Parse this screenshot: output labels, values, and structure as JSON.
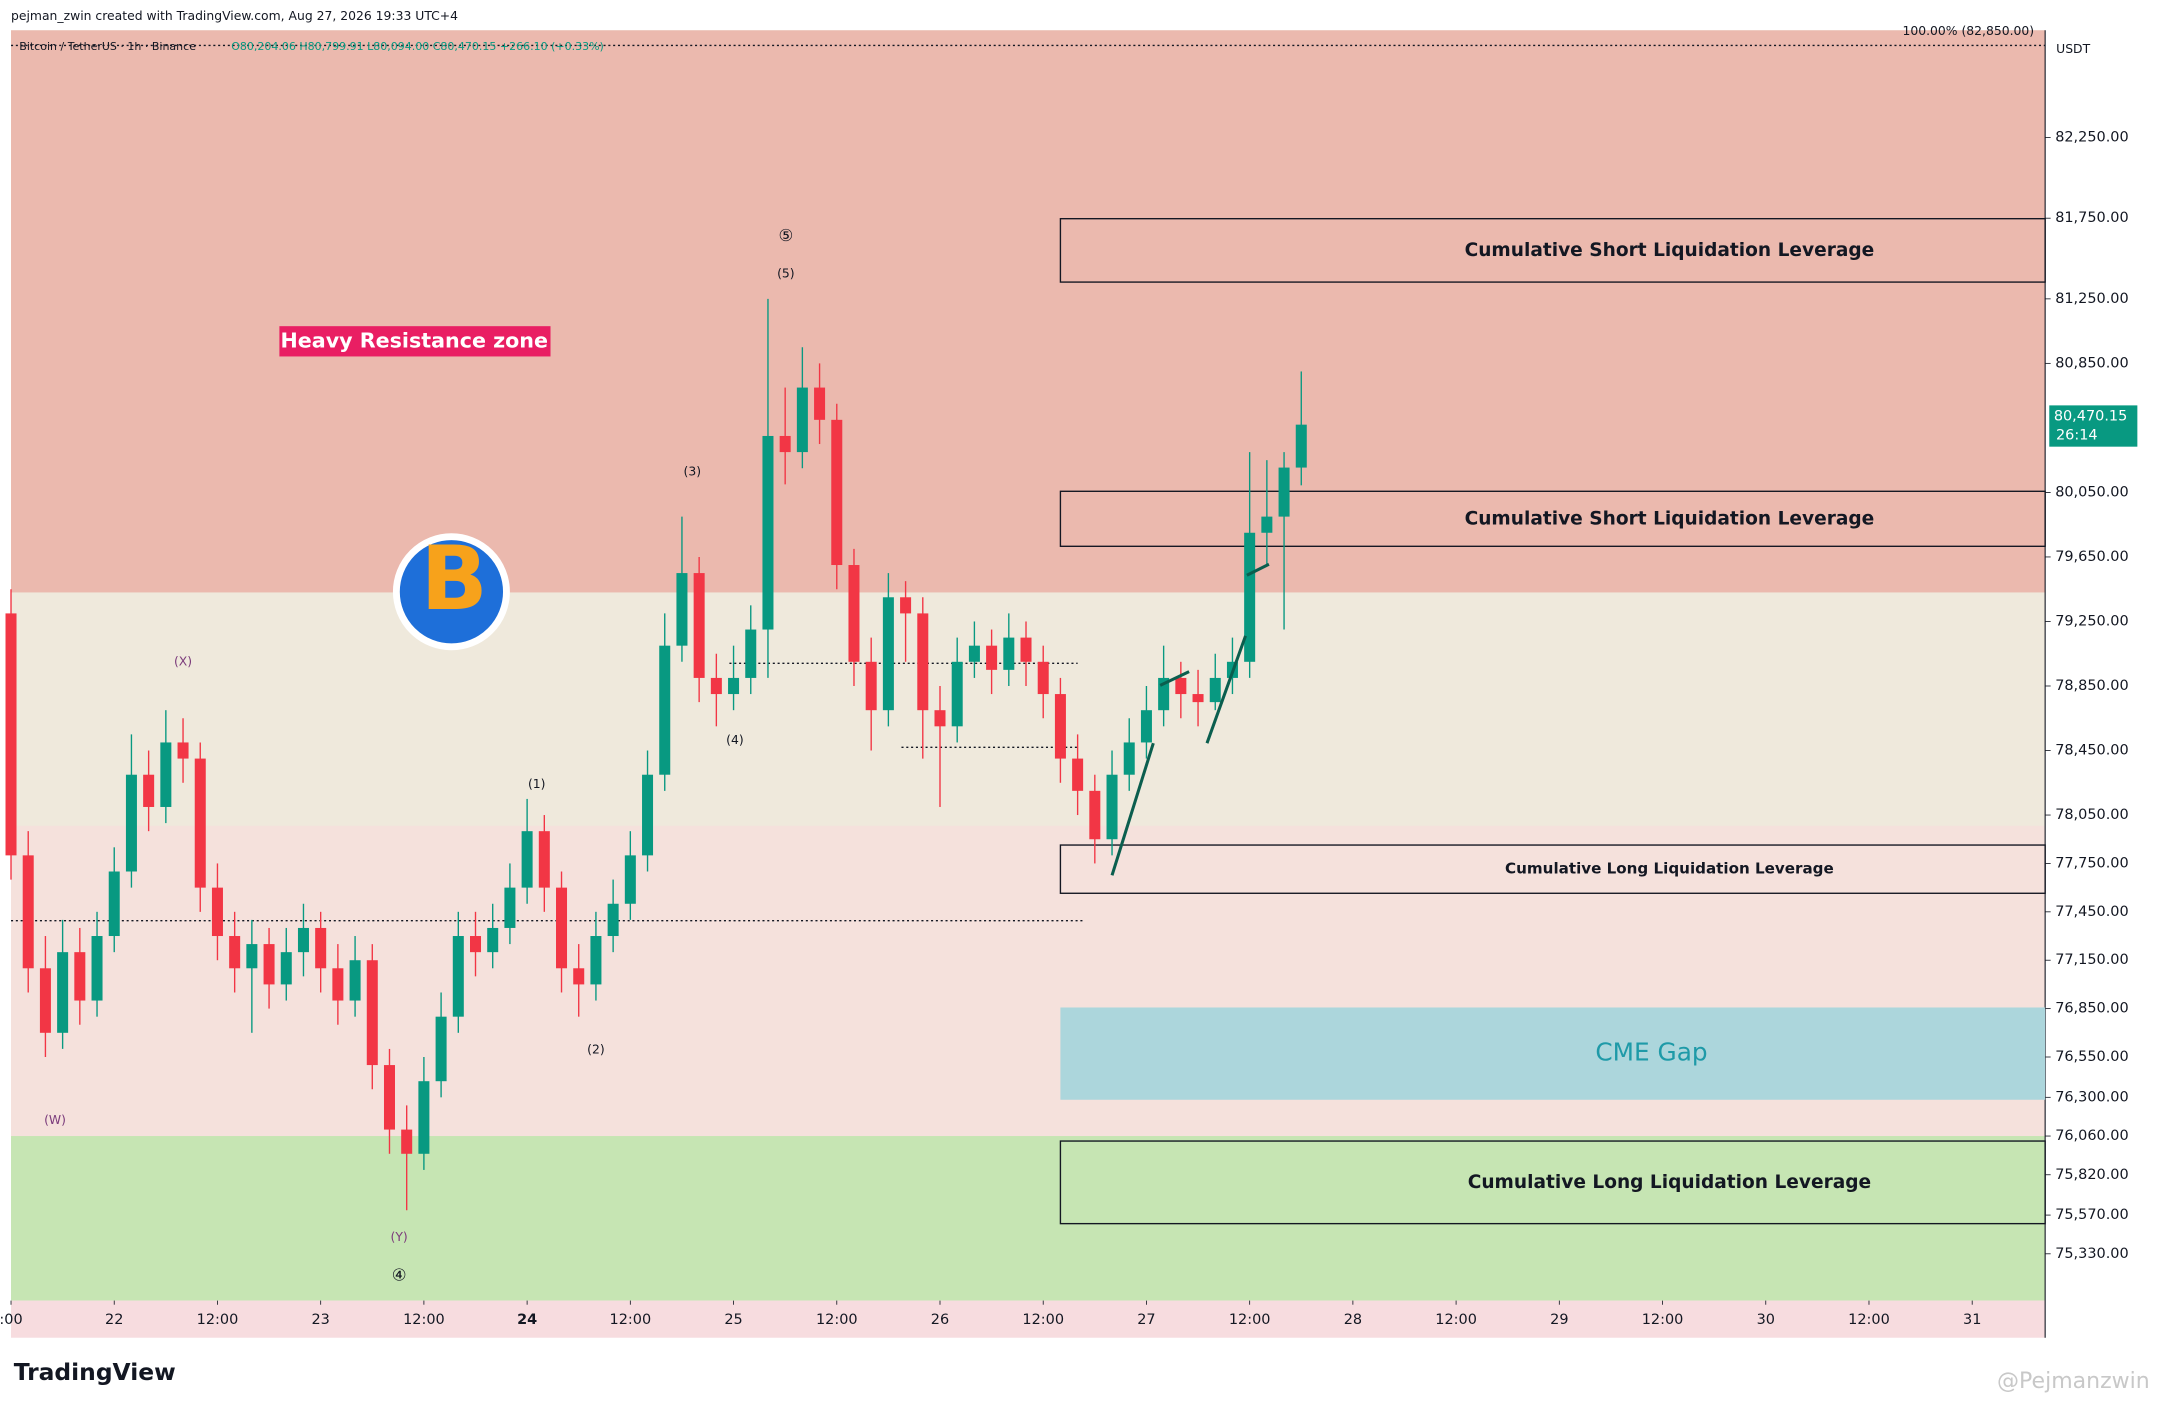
{
  "header": {
    "author_line": "pejman_zwin created with TradingView.com, Aug 27, 2026 19:33 UTC+4",
    "symbol_line": "Bitcoin / TetherUS · 1h · Binance",
    "ohlc_line": "O80,204.06 H80,799.91 L80,094.00 C80,470.15 +266.10 (+0.33%)"
  },
  "chart_data": {
    "type": "candlestick",
    "currency": "USDT",
    "top_label": "100.00% (82,850.00)",
    "last_price_label": "80,470.15",
    "countdown": "26:14",
    "up_color": "#089981",
    "down_color": "#f23645",
    "xlim": [
      -12,
      224.48
    ],
    "ylim": [
      75040,
      82915
    ],
    "xticks": [
      {
        "value": -12,
        "label": ":00"
      },
      {
        "value": 0,
        "label": "22"
      },
      {
        "value": 12,
        "label": "12:00"
      },
      {
        "value": 24,
        "label": "23"
      },
      {
        "value": 36,
        "label": "12:00"
      },
      {
        "value": 48,
        "label": "24"
      },
      {
        "value": 60,
        "label": "12:00"
      },
      {
        "value": 72,
        "label": "25"
      },
      {
        "value": 84,
        "label": "12:00"
      },
      {
        "value": 96,
        "label": "26"
      },
      {
        "value": 108,
        "label": "12:00"
      },
      {
        "value": 120,
        "label": "27"
      },
      {
        "value": 132,
        "label": "12:00"
      },
      {
        "value": 144,
        "label": "28"
      },
      {
        "value": 156,
        "label": "12:00"
      },
      {
        "value": 168,
        "label": "29"
      },
      {
        "value": 180,
        "label": "12:00"
      },
      {
        "value": 192,
        "label": "30"
      },
      {
        "value": 204,
        "label": "12:00"
      },
      {
        "value": 216,
        "label": "31"
      }
    ],
    "yticks": [
      {
        "value": 82250,
        "label": "82,250.00"
      },
      {
        "value": 81750,
        "label": "81,750.00"
      },
      {
        "value": 81250,
        "label": "81,250.00"
      },
      {
        "value": 80850,
        "label": "80,850.00"
      },
      {
        "value": 80050,
        "label": "80,050.00"
      },
      {
        "value": 79650,
        "label": "79,650.00"
      },
      {
        "value": 79250,
        "label": "79,250.00"
      },
      {
        "value": 78850,
        "label": "78,850.00"
      },
      {
        "value": 78450,
        "label": "78,450.00"
      },
      {
        "value": 78050,
        "label": "78,050.00"
      },
      {
        "value": 77750,
        "label": "77,750.00"
      },
      {
        "value": 77450,
        "label": "77,450.00"
      },
      {
        "value": 77150,
        "label": "77,150.00"
      },
      {
        "value": 76850,
        "label": "76,850.00"
      },
      {
        "value": 76550,
        "label": "76,550.00"
      },
      {
        "value": 76300,
        "label": "76,300.00"
      },
      {
        "value": 76060,
        "label": "76,060.00"
      },
      {
        "value": 75820,
        "label": "75,820.00"
      },
      {
        "value": 75570,
        "label": "75,570.00"
      },
      {
        "value": 75330,
        "label": "75,330.00"
      }
    ],
    "x": [
      -12,
      -10,
      -8,
      -6,
      -4,
      -2,
      0,
      2,
      4,
      6,
      8,
      10,
      12,
      14,
      16,
      18,
      20,
      22,
      24,
      26,
      28,
      30,
      32,
      34,
      36,
      38,
      40,
      42,
      44,
      46,
      48,
      50,
      52,
      54,
      56,
      58,
      60,
      62,
      64,
      66,
      68,
      70,
      72,
      74,
      76,
      78,
      80,
      82,
      84,
      86,
      88,
      90,
      92,
      94,
      96,
      98,
      100,
      102,
      104,
      106,
      108,
      110,
      112,
      114,
      116,
      118,
      120,
      122,
      124,
      126,
      128,
      130,
      132,
      134,
      136,
      138
    ],
    "open": [
      79300,
      77800,
      77100,
      76700,
      77200,
      76900,
      77300,
      77700,
      78300,
      78100,
      78500,
      78400,
      77600,
      77300,
      77100,
      77250,
      77000,
      77200,
      77350,
      77100,
      76900,
      77150,
      76500,
      76100,
      75950,
      76400,
      76800,
      77300,
      77200,
      77350,
      77600,
      77950,
      77600,
      77100,
      77000,
      77300,
      77500,
      77800,
      78300,
      79100,
      79550,
      78900,
      78800,
      78900,
      79200,
      80400,
      80300,
      80700,
      80500,
      79600,
      79000,
      78700,
      79400,
      79300,
      78700,
      78600,
      79000,
      79100,
      78950,
      79150,
      79000,
      78800,
      78400,
      78200,
      77900,
      78300,
      78500,
      78700,
      78900,
      78800,
      78750,
      78900,
      79000,
      79800,
      79900,
      80204.06
    ],
    "high": [
      79450,
      77950,
      77300,
      77400,
      77350,
      77450,
      77850,
      78550,
      78450,
      78700,
      78650,
      78500,
      77750,
      77450,
      77400,
      77350,
      77350,
      77500,
      77450,
      77250,
      77300,
      77250,
      76600,
      76250,
      76550,
      76950,
      77450,
      77450,
      77500,
      77750,
      78150,
      78050,
      77700,
      77250,
      77450,
      77650,
      77950,
      78450,
      79300,
      79900,
      79650,
      79050,
      79100,
      79350,
      81250,
      80700,
      80950,
      80850,
      80600,
      79700,
      79150,
      79550,
      79500,
      79400,
      78850,
      79150,
      79250,
      79200,
      79300,
      79250,
      79100,
      78900,
      78550,
      78300,
      78450,
      78650,
      78850,
      79100,
      79000,
      78950,
      79050,
      79150,
      80300,
      80250,
      80300,
      80799.91
    ],
    "low": [
      77650,
      76950,
      76550,
      76600,
      76750,
      76800,
      77200,
      77600,
      77950,
      78000,
      78250,
      77450,
      77150,
      76950,
      76700,
      76850,
      76900,
      77050,
      76950,
      76750,
      76800,
      76350,
      75950,
      75600,
      75850,
      76300,
      76700,
      77050,
      77100,
      77250,
      77500,
      77450,
      76950,
      76800,
      76900,
      77200,
      77400,
      77700,
      78200,
      79000,
      78750,
      78600,
      78700,
      78800,
      78900,
      80100,
      80200,
      80350,
      79450,
      78850,
      78450,
      78600,
      79000,
      78400,
      78100,
      78500,
      78900,
      78800,
      78850,
      78850,
      78650,
      78250,
      78050,
      77750,
      77800,
      78200,
      78400,
      78600,
      78650,
      78600,
      78700,
      78800,
      78900,
      79600,
      79200,
      80094
    ],
    "close": [
      77800,
      77100,
      76700,
      77200,
      76900,
      77300,
      77700,
      78300,
      78100,
      78500,
      78400,
      77600,
      77300,
      77100,
      77250,
      77000,
      77200,
      77350,
      77100,
      76900,
      77150,
      76500,
      76100,
      75950,
      76400,
      76800,
      77300,
      77200,
      77350,
      77600,
      77950,
      77600,
      77100,
      77000,
      77300,
      77500,
      77800,
      78300,
      79100,
      79550,
      78900,
      78800,
      78900,
      79200,
      80400,
      80300,
      80700,
      80500,
      79600,
      79000,
      78700,
      79400,
      79300,
      78700,
      78600,
      79000,
      79100,
      78950,
      79150,
      79000,
      78800,
      78400,
      78200,
      77900,
      78300,
      78500,
      78700,
      78900,
      78800,
      78750,
      78900,
      79000,
      79800,
      79900,
      80204.06,
      80470.15
    ],
    "resistance_zone": {
      "label": "Heavy Resistance zone",
      "low": 79430,
      "color": "#ebb9ae"
    },
    "support_zone": {
      "high": 76060,
      "color": "#c6e5b3"
    },
    "zones": [
      {
        "label": "Cumulative Short Liquidation Leverage",
        "low": 81354,
        "high": 81747,
        "x_start": 110
      },
      {
        "label": "Cumulative Short Liquidation Leverage",
        "low": 79716,
        "high": 80057,
        "x_start": 110
      },
      {
        "label": "Cumulative Long Liquidation Leverage",
        "low": 77565,
        "high": 77864,
        "x_start": 110
      },
      {
        "label": "CME Gap",
        "low": 76285,
        "high": 76857,
        "x_start": 110,
        "color": "#acd6dc"
      },
      {
        "label": "Cumulative Long Liquidation Leverage",
        "low": 75517,
        "high": 76029,
        "x_start": 110
      }
    ],
    "annotations": [
      "(X)",
      "(W)",
      "(Y)",
      "④",
      "(1)",
      "(2)",
      "(3)",
      "(4)",
      "(5)",
      "⑤"
    ]
  },
  "footer": {
    "logo": "TradingView",
    "watermark": "@Pejmanzwin"
  }
}
